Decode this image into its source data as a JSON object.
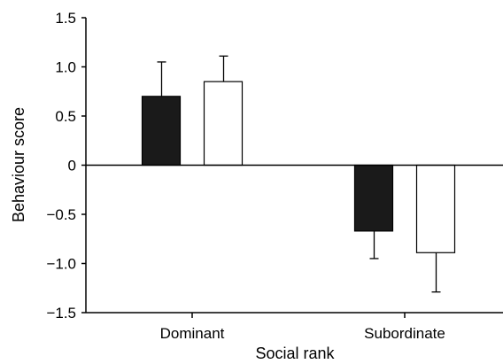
{
  "chart_data": {
    "type": "bar",
    "title": "",
    "xlabel": "Social rank",
    "ylabel": "Behaviour score",
    "categories": [
      "Dominant",
      "Subordinate"
    ],
    "ylim": [
      -1.5,
      1.5
    ],
    "yticks": [
      1.5,
      1.0,
      0.5,
      0,
      -0.5,
      -1.0,
      -1.5
    ],
    "ytick_labels": [
      "1.5",
      "1.0",
      "0.5",
      "0",
      "−0.5",
      "−1.0",
      "−1.5"
    ],
    "grid": false,
    "legend": "none",
    "series": [
      {
        "fill": "#1a1a1a",
        "values": [
          0.7,
          -0.67
        ],
        "errors": [
          0.35,
          0.28
        ]
      },
      {
        "fill": "#ffffff",
        "values": [
          0.85,
          -0.89
        ],
        "errors": [
          0.26,
          0.4
        ]
      }
    ]
  }
}
